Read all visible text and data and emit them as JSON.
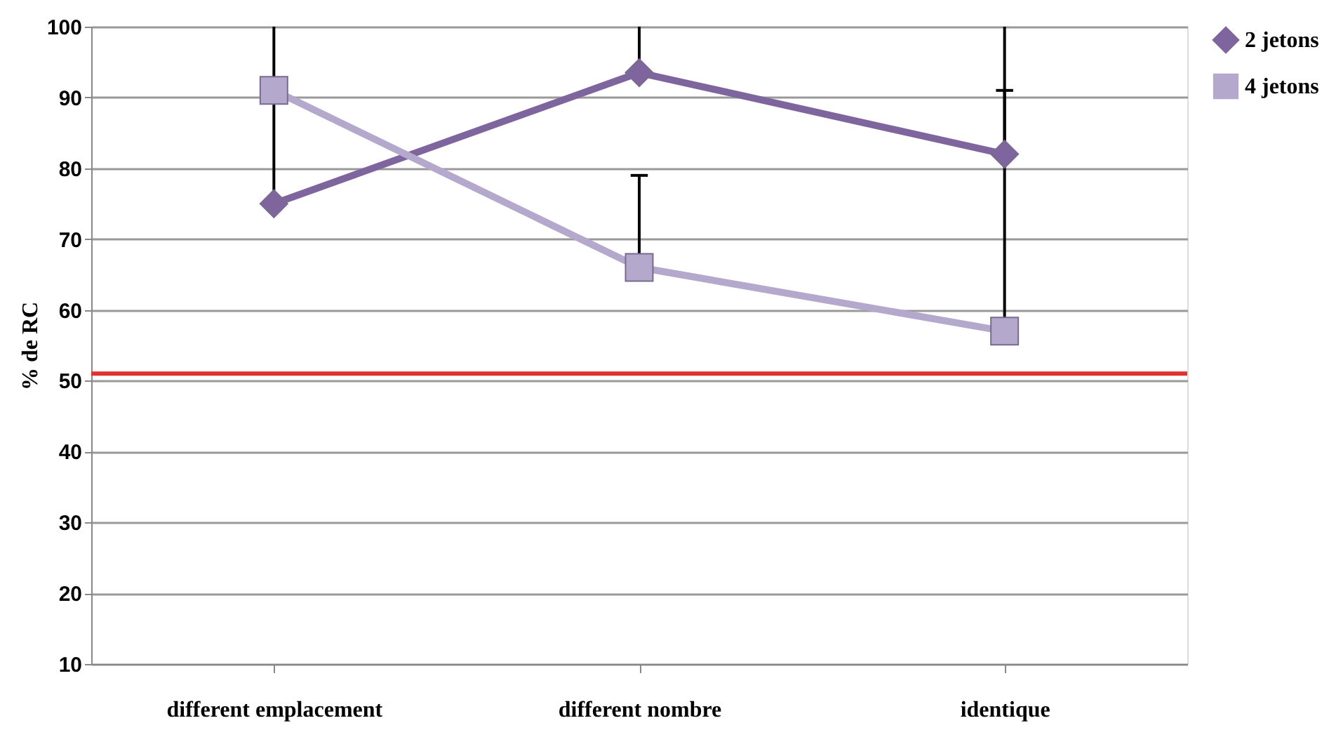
{
  "chart_data": {
    "type": "line",
    "ylabel": "% de RC",
    "categories": [
      "different emplacement",
      "different nombre",
      "identique"
    ],
    "series": [
      {
        "name": "2 jetons",
        "color": "#7f659e",
        "marker": "diamond",
        "values": [
          75,
          93.5,
          82
        ],
        "errors": [
          [
            75,
            100
          ],
          [
            93.5,
            100
          ],
          [
            82,
            100
          ]
        ]
      },
      {
        "name": "4 jetons",
        "color": "#b4a8cc",
        "marker": "square",
        "values": [
          91,
          66,
          57
        ],
        "errors": [
          null,
          [
            66,
            79
          ],
          [
            57,
            91
          ]
        ]
      }
    ],
    "ylim": [
      10,
      100
    ],
    "yticks": [
      10,
      20,
      30,
      40,
      50,
      60,
      70,
      80,
      90,
      100
    ],
    "grid": "y",
    "legend": "right",
    "ref_lines": [
      {
        "axis": "y",
        "value": 51,
        "color": "#e03030"
      }
    ]
  }
}
